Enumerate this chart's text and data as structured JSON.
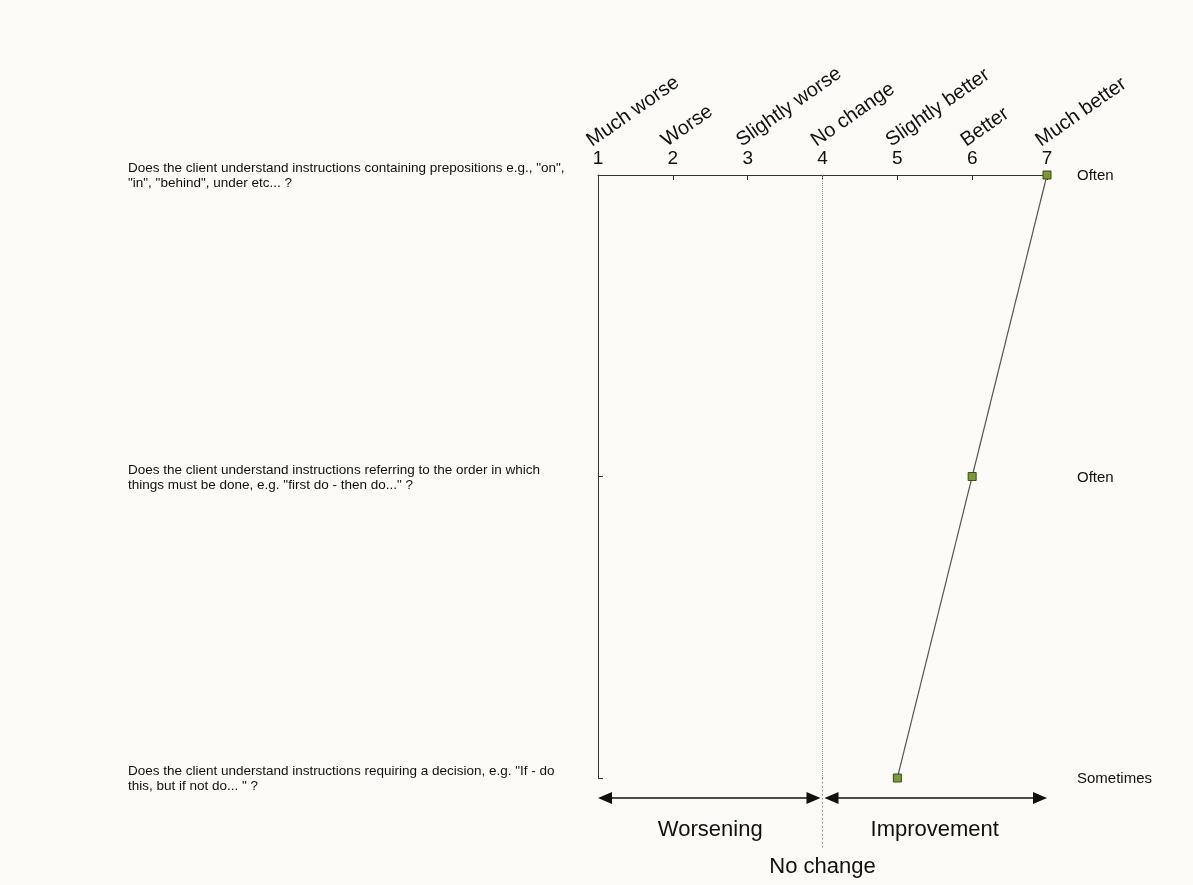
{
  "chart_data": {
    "type": "line",
    "orientation": "horizontal",
    "categories": [
      "Does the client understand instructions containing prepositions e.g., \"on\", \"in\", \"behind\", under etc... ?",
      "Does the client understand instructions referring to the order in which things must be done, e.g. \"first do - then do...\" ?",
      "Does the client understand instructions requiring a decision, e.g. \"If - do this, but if not do... \" ?"
    ],
    "series": [
      {
        "color": "#7a9a3a",
        "values": [
          7,
          6,
          5
        ]
      }
    ],
    "xlim": [
      1,
      7
    ],
    "xticks": [
      1,
      2,
      3,
      4,
      5,
      6,
      7
    ],
    "ref_lines": [
      {
        "axis": "x",
        "value": 4,
        "label": "No change",
        "line_style": "dotted",
        "color": "#888888"
      }
    ],
    "annotations": [
      "Much worse",
      "Worse",
      "Slightly worse",
      "No change",
      "Slightly better",
      "Better",
      "Much better",
      "Often",
      "Often",
      "Sometimes",
      "Worsening",
      "Improvement"
    ],
    "marker": "square",
    "line_style": "solid",
    "grid": false
  }
}
